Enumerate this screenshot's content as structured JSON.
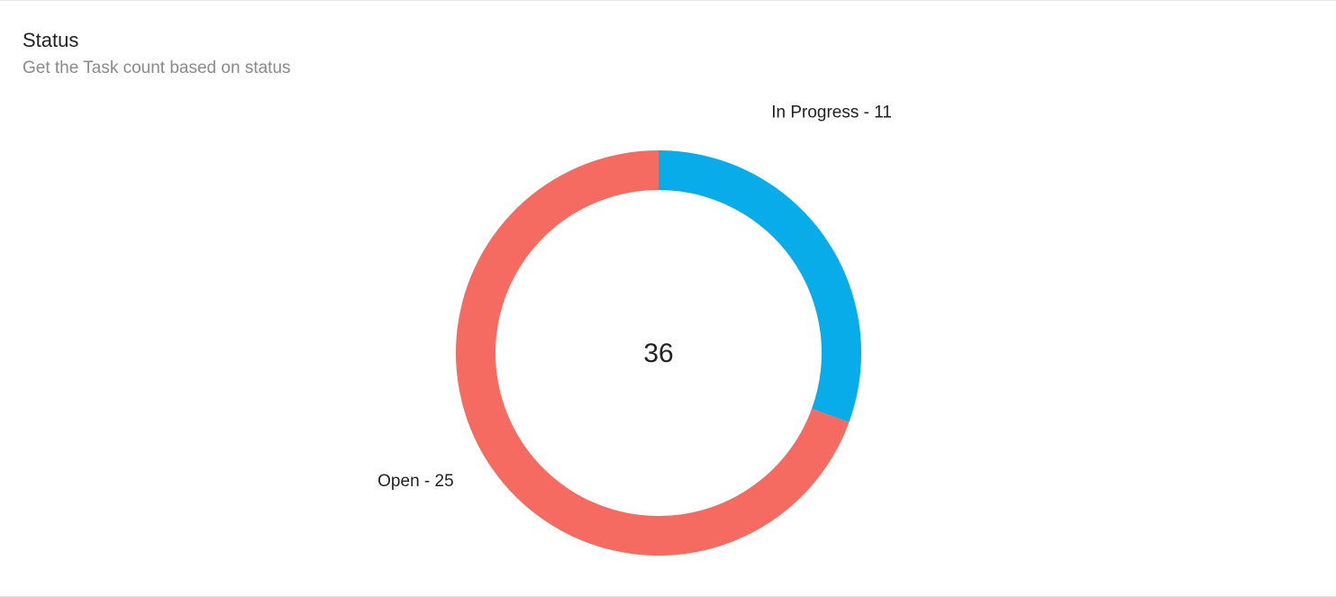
{
  "widget": {
    "title": "Status",
    "subtitle": "Get the Task count based on status"
  },
  "chart_data": {
    "type": "pie",
    "variant": "donut",
    "total": 36,
    "slices": [
      {
        "label": "In Progress - 11",
        "category": "In Progress",
        "value": 11,
        "color": "#08ace8"
      },
      {
        "label": "Open - 25",
        "category": "Open",
        "value": 25,
        "color": "#f56b61"
      }
    ],
    "legend": "none"
  }
}
